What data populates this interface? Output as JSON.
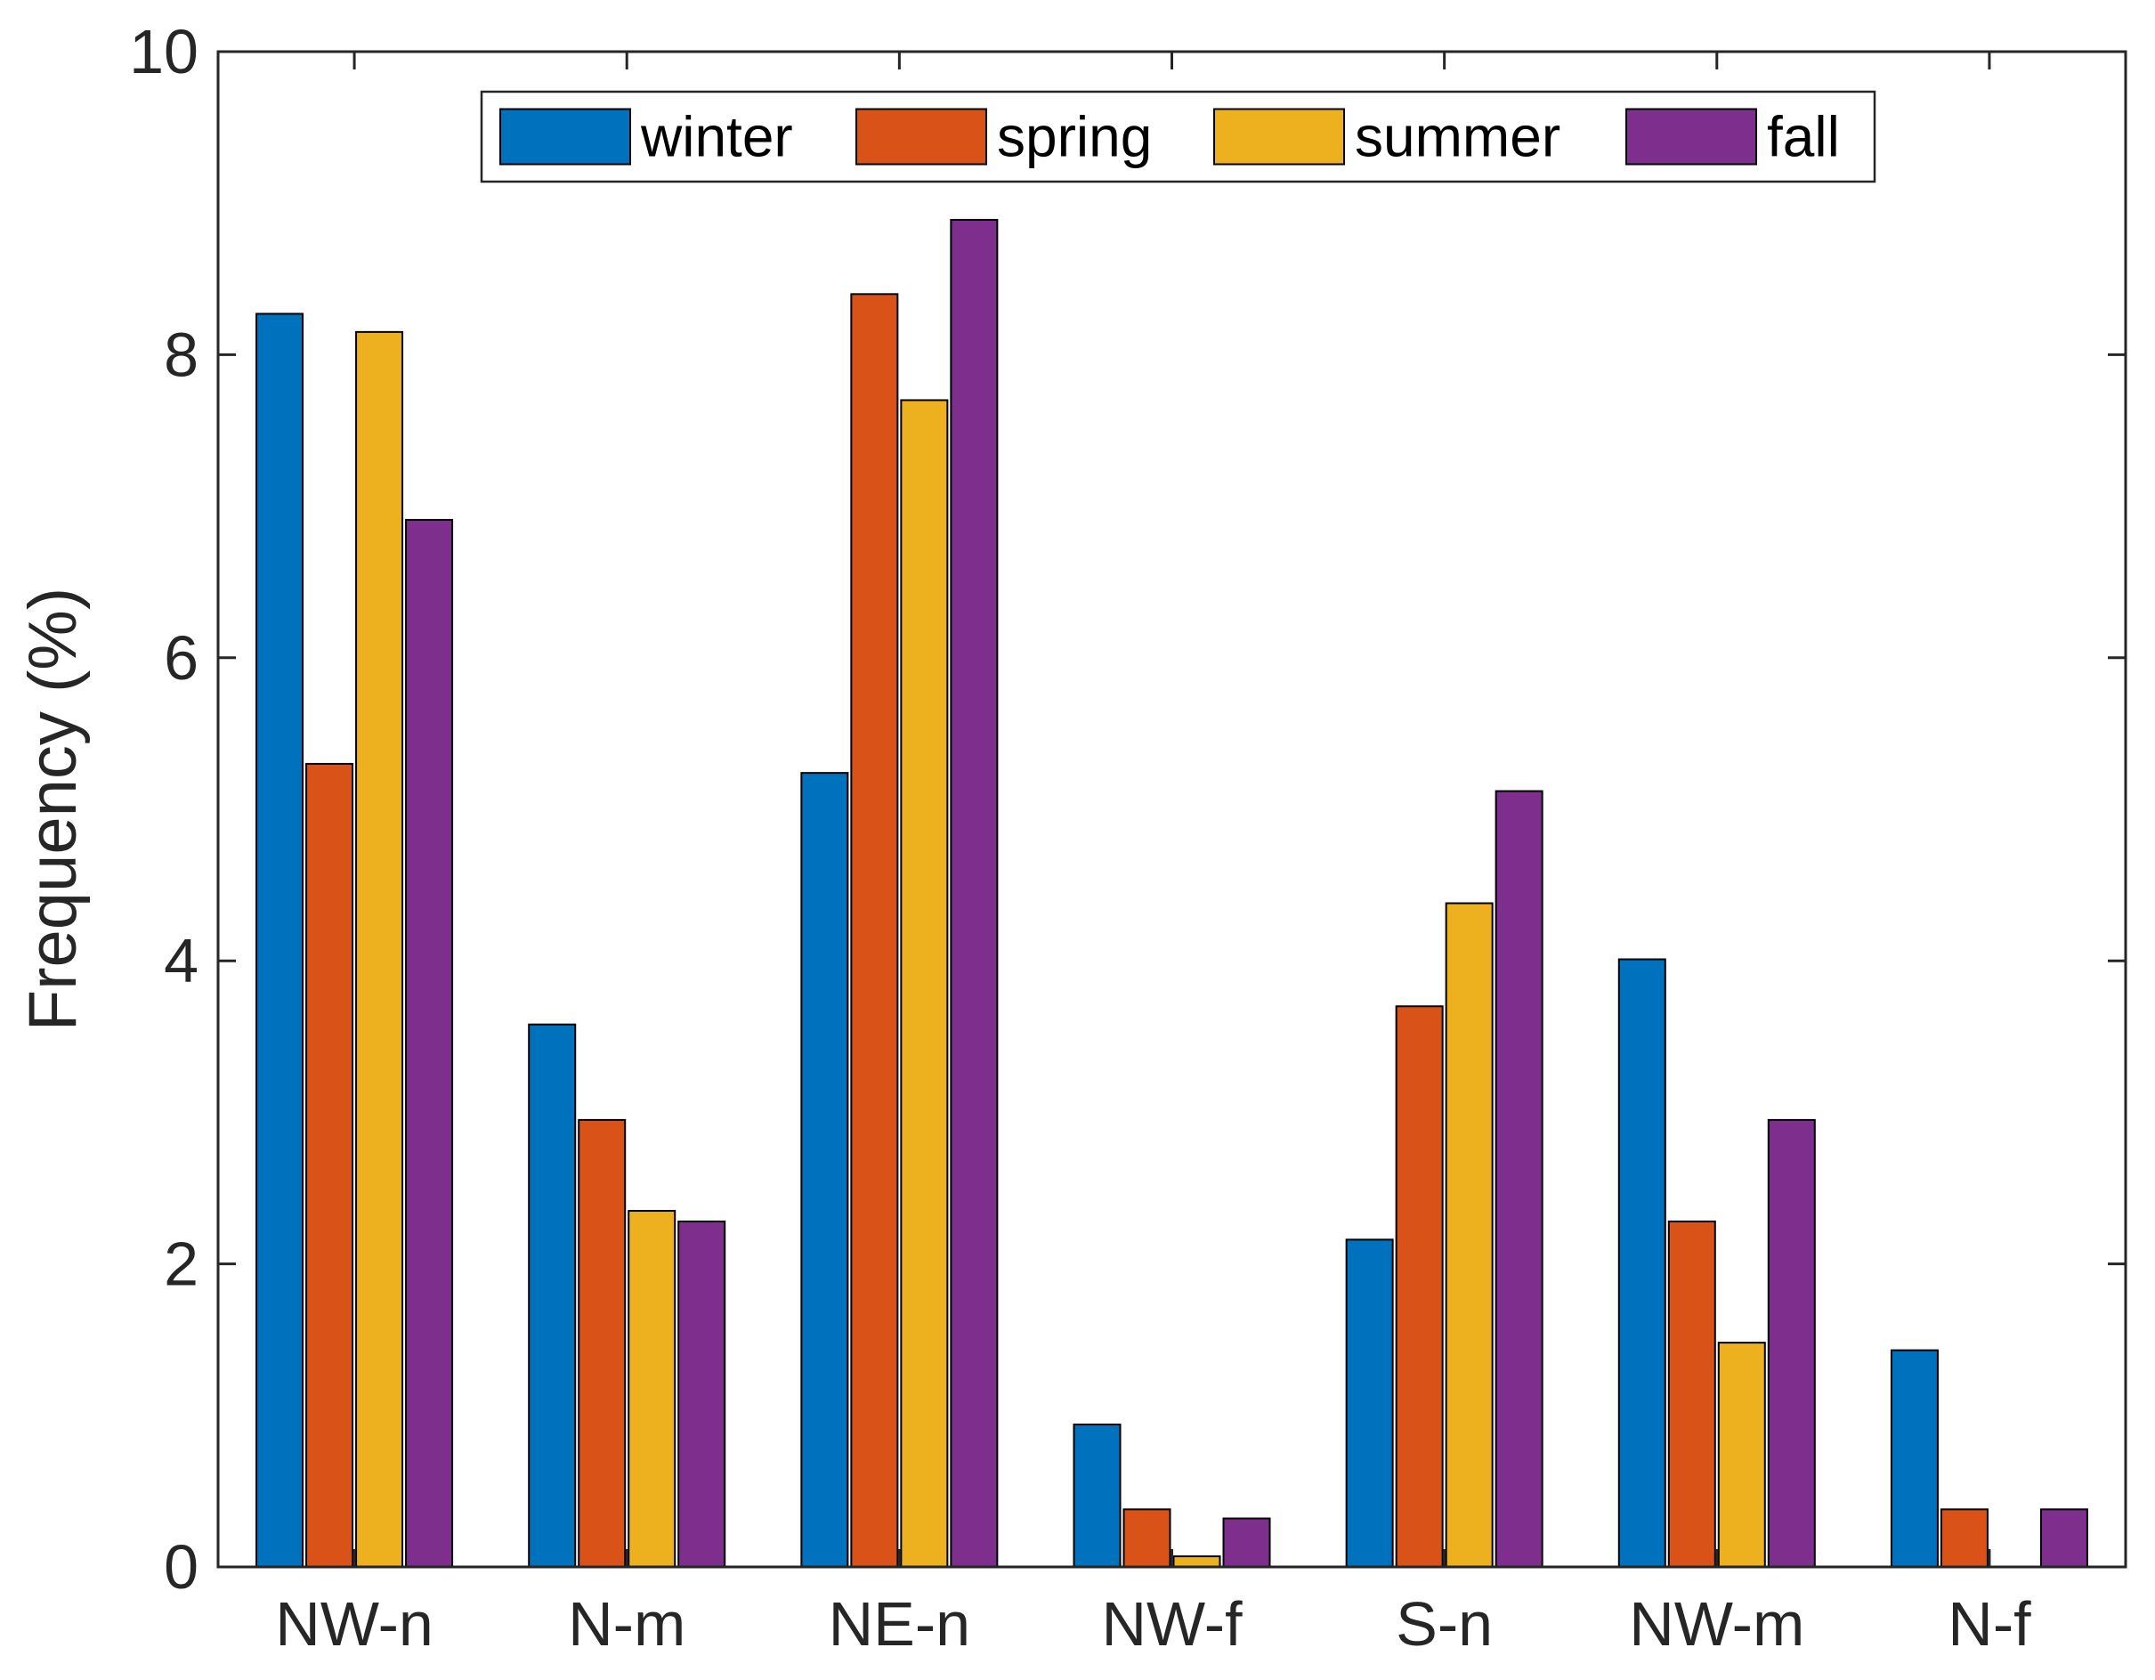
{
  "chart_data": {
    "type": "bar",
    "title": "",
    "xlabel": "",
    "ylabel": "Frequency (%)",
    "ylim": [
      0,
      10
    ],
    "yticks": [
      "0",
      "2",
      "4",
      "6",
      "8",
      "10"
    ],
    "categories": [
      "NW-n",
      "N-m",
      "NE-n",
      "NW-f",
      "S-n",
      "NW-m",
      "N-f"
    ],
    "series": [
      {
        "name": "winter",
        "color": "#0072BD",
        "values": [
          8.27,
          3.58,
          5.24,
          0.94,
          2.16,
          4.01,
          1.43
        ]
      },
      {
        "name": "spring",
        "color": "#D95319",
        "values": [
          5.3,
          2.95,
          8.4,
          0.38,
          3.7,
          2.28,
          0.38
        ]
      },
      {
        "name": "summer",
        "color": "#EDB120",
        "values": [
          8.15,
          2.35,
          7.7,
          0.07,
          4.38,
          1.48,
          0.0
        ]
      },
      {
        "name": "fall",
        "color": "#7E2F8E",
        "values": [
          6.91,
          2.28,
          8.89,
          0.32,
          5.12,
          2.95,
          0.38
        ]
      }
    ],
    "legend": {
      "position": "top",
      "orientation": "horizontal"
    },
    "grid": false
  }
}
